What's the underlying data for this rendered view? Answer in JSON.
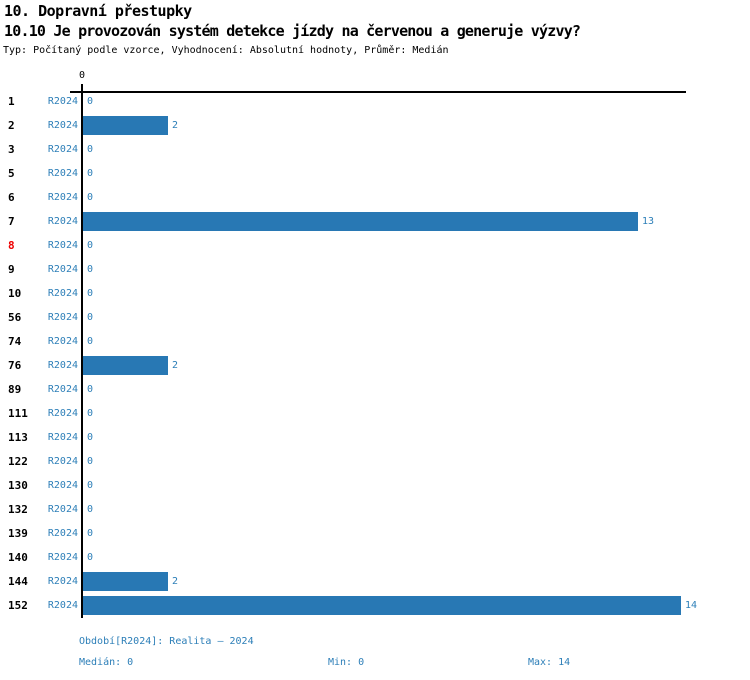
{
  "header": {
    "title": "10. Dopravní přestupky",
    "subtitle": "10.10 Je provozován systém detekce jízdy na červenou a generuje výzvy?",
    "meta": "Typ: Počítaný podle vzorce, Vyhodnocení: Absolutní hodnoty, Průměr: Medián"
  },
  "chart_data": {
    "type": "bar",
    "orientation": "horizontal",
    "title": "10.10 Je provozován systém detekce jízdy na červenou a generuje výzvy?",
    "categories": [
      "1",
      "2",
      "3",
      "5",
      "6",
      "7",
      "8",
      "9",
      "10",
      "56",
      "74",
      "76",
      "89",
      "111",
      "113",
      "122",
      "130",
      "132",
      "139",
      "140",
      "144",
      "152"
    ],
    "series": [
      {
        "name": "R2024",
        "values": [
          0,
          2,
          0,
          0,
          0,
          13,
          0,
          0,
          0,
          0,
          0,
          2,
          0,
          0,
          0,
          0,
          0,
          0,
          0,
          0,
          2,
          14
        ]
      }
    ],
    "highlighted_categories": [
      "8"
    ],
    "xlim": [
      0,
      14
    ],
    "top_axis_tick_label": "0",
    "grid": false,
    "legend_position": "none",
    "value_labels_shown": true,
    "bar_color": "#2878b4",
    "value_label_color": "#2d7fb8",
    "category_label_color": "#000000",
    "highlight_color": "#ee0000"
  },
  "footer": {
    "period": "Období[R2024]: Realita – 2024",
    "median": "Medián: 0",
    "min": "Min: 0",
    "max": "Max: 14"
  }
}
